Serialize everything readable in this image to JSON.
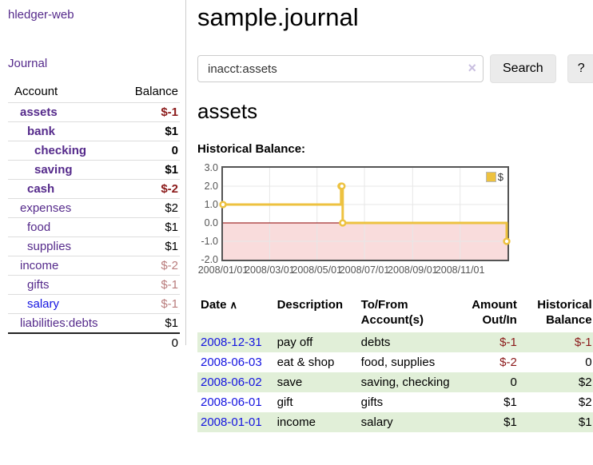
{
  "colors": {
    "purple": "#552a8b",
    "blue": "#1414e0",
    "neg": "#8b1a1a",
    "negmuted": "#b97c7c",
    "green": "#e1efd8",
    "gold": "#edc240"
  },
  "sidebar": {
    "app_title": "hledger-web",
    "nav": [
      {
        "label": "Journal"
      }
    ],
    "accounts_table": {
      "headers": [
        "Account",
        "Balance"
      ],
      "rows": [
        {
          "account": "assets",
          "indent": 1,
          "bold": true,
          "balance": "$-1",
          "balance_style": "neg"
        },
        {
          "account": "bank",
          "indent": 2,
          "bold": true,
          "balance": "$1",
          "balance_style": "pos"
        },
        {
          "account": "checking",
          "indent": 3,
          "bold": true,
          "balance": "0",
          "balance_style": "pos"
        },
        {
          "account": "saving",
          "indent": 3,
          "bold": true,
          "balance": "$1",
          "balance_style": "pos"
        },
        {
          "account": "cash",
          "indent": 2,
          "bold": true,
          "balance": "$-2",
          "balance_style": "neg"
        },
        {
          "account": "expenses",
          "indent": 1,
          "bold": false,
          "balance": "$2",
          "balance_style": "pos"
        },
        {
          "account": "food",
          "indent": 2,
          "bold": false,
          "balance": "$1",
          "balance_style": "pos"
        },
        {
          "account": "supplies",
          "indent": 2,
          "bold": false,
          "balance": "$1",
          "balance_style": "pos"
        },
        {
          "account": "income",
          "indent": 1,
          "bold": false,
          "balance": "$-2",
          "balance_style": "negmuted"
        },
        {
          "account": "gifts",
          "indent": 2,
          "bold": false,
          "balance": "$-1",
          "balance_style": "negmuted"
        },
        {
          "account": "salary",
          "indent": 2,
          "bold": false,
          "balance": "$-1",
          "balance_style": "negmuted",
          "unvisited": true
        },
        {
          "account": "liabilities:debts",
          "indent": 1,
          "bold": false,
          "balance": "$1",
          "balance_style": "pos"
        }
      ],
      "total": "0"
    }
  },
  "main": {
    "title": "sample.journal",
    "search": {
      "value": "inacct:assets",
      "clear_icon": "×",
      "search_label": "Search",
      "help_label": "?"
    },
    "account_heading": "assets",
    "chart_label": "Historical Balance:",
    "register_table": {
      "sort_icon": "∧",
      "headers": [
        {
          "label": "Date",
          "align": "l",
          "key": "date",
          "sortable": true
        },
        {
          "label": "Description",
          "align": "l",
          "key": "desc"
        },
        {
          "label": "To/From Account(s)",
          "align": "l",
          "key": "accts"
        },
        {
          "label": "Amount Out/In",
          "align": "r",
          "key": "amt"
        },
        {
          "label": "Historical Balance",
          "align": "r",
          "key": "bal"
        }
      ],
      "rows": [
        {
          "date": "2008-12-31",
          "description": "pay off",
          "accounts": "debts",
          "amount": "$-1",
          "amount_negative": true,
          "balance": "$-1",
          "balance_negative": true
        },
        {
          "date": "2008-06-03",
          "description": "eat & shop",
          "accounts": "food, supplies",
          "amount": "$-2",
          "amount_negative": true,
          "balance": "0",
          "balance_negative": false
        },
        {
          "date": "2008-06-02",
          "description": "save",
          "accounts": "saving, checking",
          "amount": "0",
          "amount_negative": false,
          "balance": "$2",
          "balance_negative": false
        },
        {
          "date": "2008-06-01",
          "description": "gift",
          "accounts": "gifts",
          "amount": "$1",
          "amount_negative": false,
          "balance": "$2",
          "balance_negative": false
        },
        {
          "date": "2008-01-01",
          "description": "income",
          "accounts": "salary",
          "amount": "$1",
          "amount_negative": false,
          "balance": "$1",
          "balance_negative": false
        }
      ]
    }
  },
  "chart_data": {
    "type": "line",
    "title": "Historical Balance",
    "line_style": "steps",
    "grid": true,
    "legend_position": "top-right",
    "xlim": [
      "2008/01/01",
      "2009/01/01"
    ],
    "ylim": [
      -2,
      3
    ],
    "yticks": [
      3.0,
      2.0,
      1.0,
      0.0,
      -1.0,
      -2.0
    ],
    "xticks": [
      "2008/01/01",
      "2008/03/01",
      "2008/05/01",
      "2008/07/01",
      "2008/09/01",
      "2008/11/01"
    ],
    "zero_line_color": "#8b0000",
    "negative_region_fill": "#f9dcdc",
    "series": [
      {
        "name": "$",
        "color": "#edc240",
        "points": [
          [
            "2008/01/01",
            1
          ],
          [
            "2008/06/01",
            2
          ],
          [
            "2008/06/02",
            2
          ],
          [
            "2008/06/03",
            0
          ],
          [
            "2008/12/31",
            -1
          ]
        ]
      }
    ]
  }
}
